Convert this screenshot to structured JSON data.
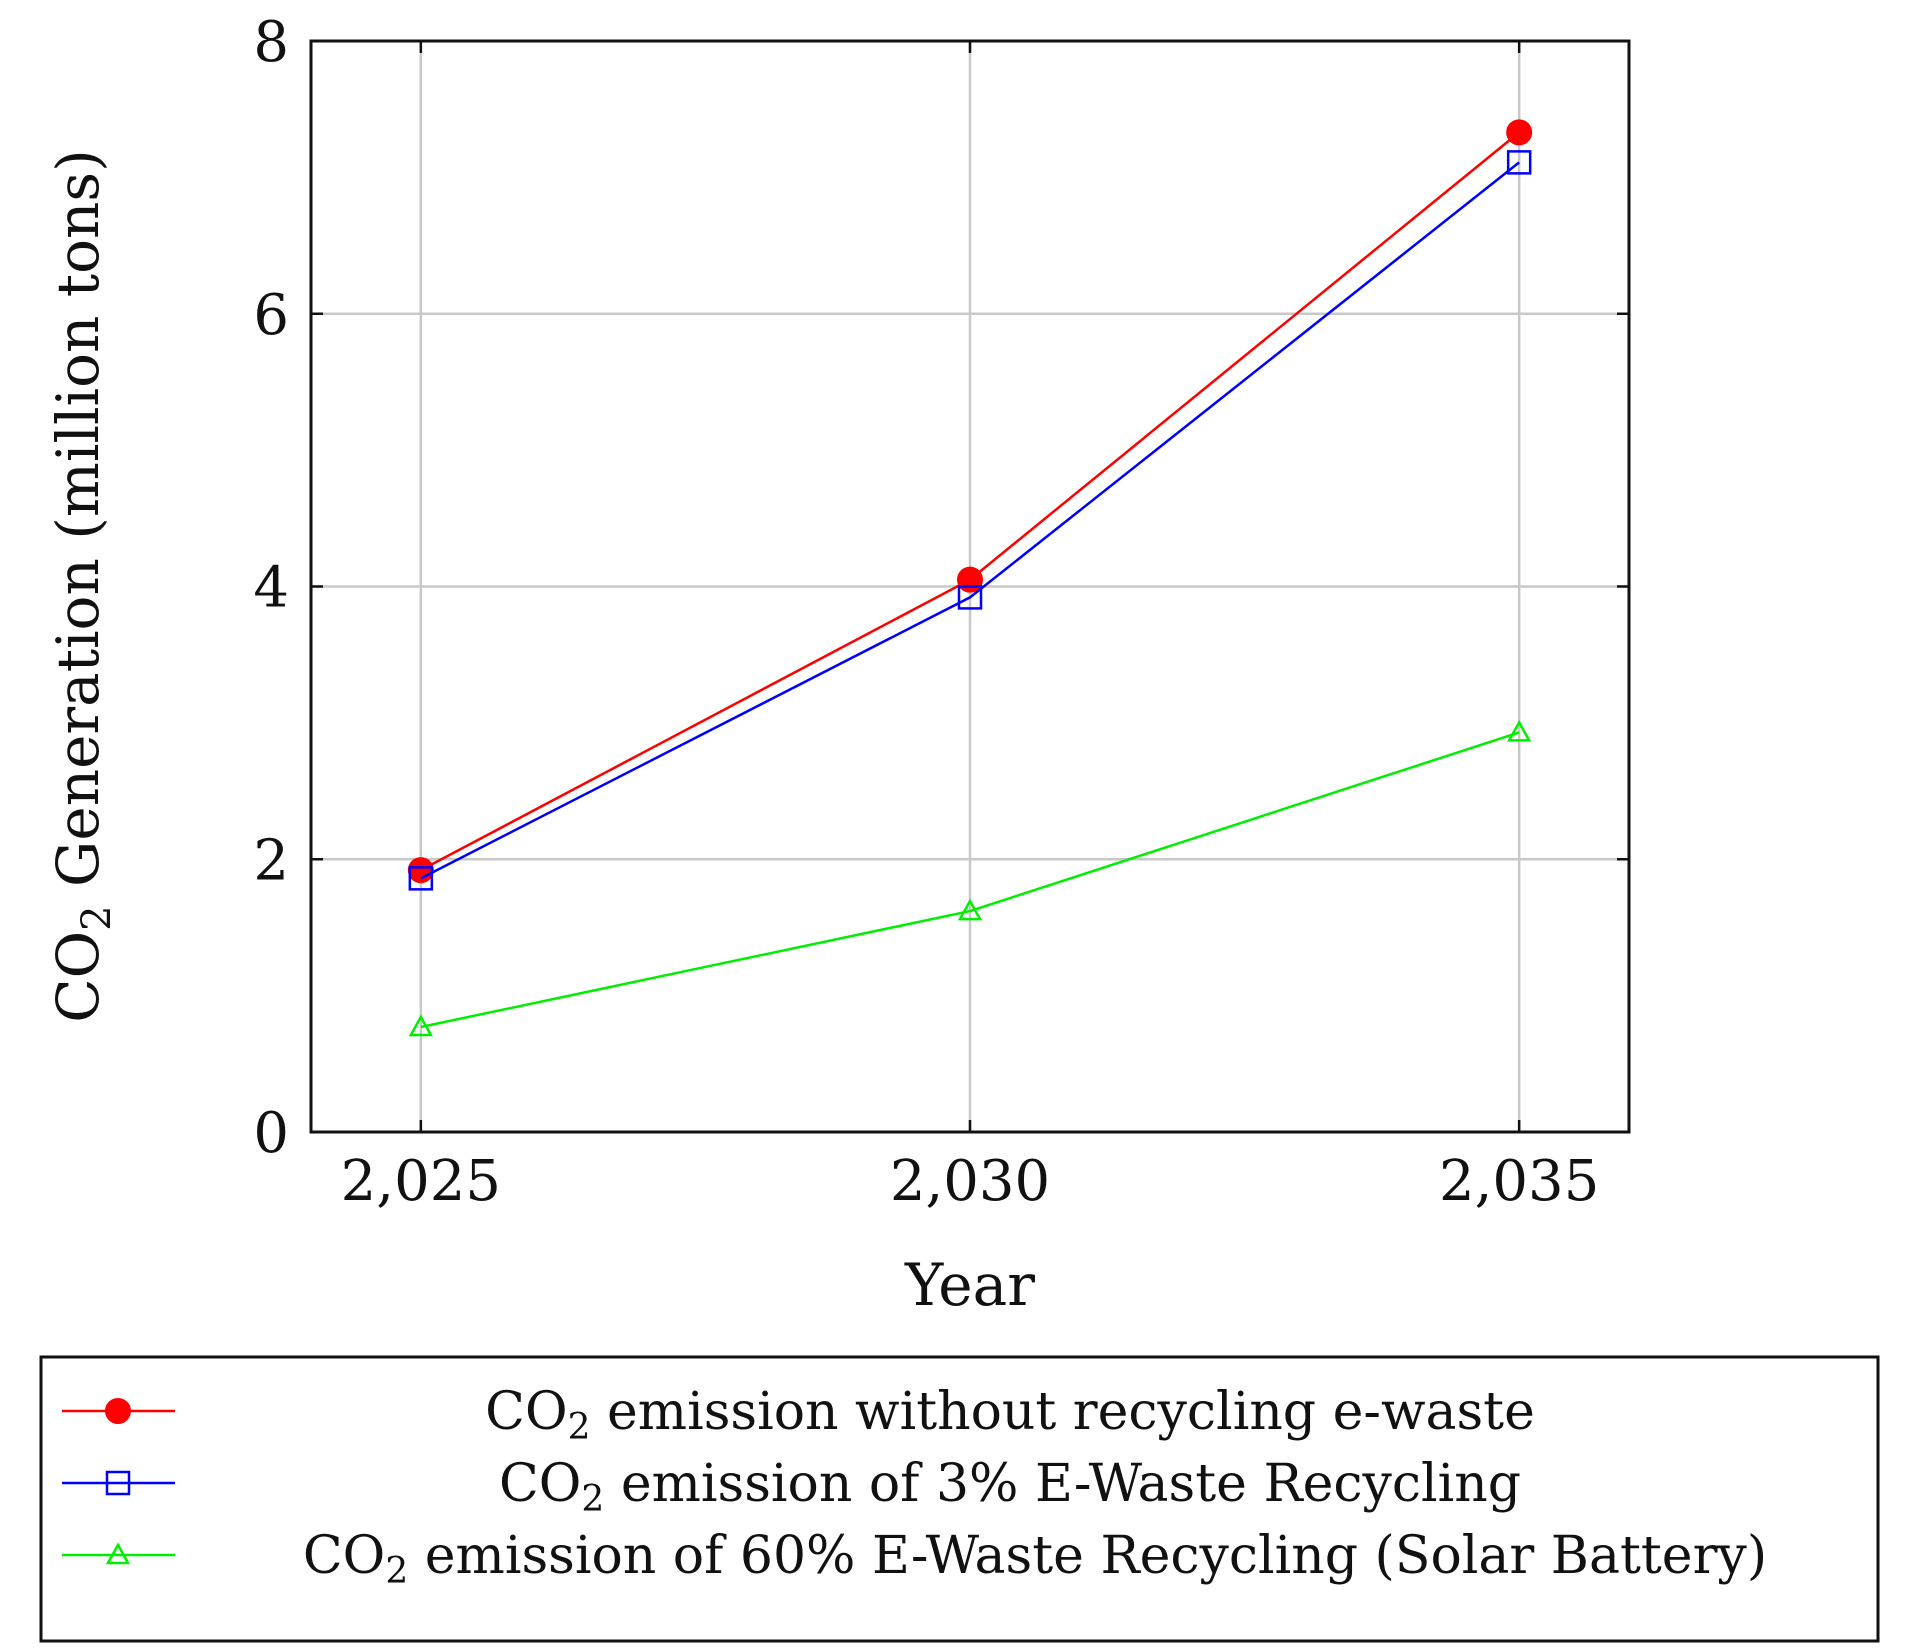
{
  "chart_data": {
    "type": "line",
    "title": "",
    "x": [
      2025,
      2030,
      2035
    ],
    "x_tick_labels": [
      "2,025",
      "2,030",
      "2,035"
    ],
    "xlabel": "Year",
    "ylabel": "CO2 Generation (million tons)",
    "ylabel_parts": {
      "pre": "CO",
      "sub": "2",
      "post": " Generation (million tons)"
    },
    "xlim": [
      2024,
      2036
    ],
    "ylim": [
      0,
      8
    ],
    "y_ticks": [
      0,
      2,
      4,
      6,
      8
    ],
    "y_tick_labels": [
      "0",
      "2",
      "4",
      "6",
      "8"
    ],
    "grid": true,
    "legend_position": "bottom-outside",
    "series": [
      {
        "name": "CO2 emission without recycling e-waste",
        "label_pre": "CO",
        "label_sub": "2",
        "label_post": " emission without recycling e-waste",
        "color": "#ff0000",
        "marker": "filled-circle",
        "values": [
          1.92,
          4.05,
          7.33
        ]
      },
      {
        "name": "CO2 emission of 3% E-Waste Recycling",
        "label_pre": "CO",
        "label_sub": "2",
        "label_post": " emission of 3% E-Waste Recycling",
        "color": "#0000ff",
        "marker": "open-square",
        "values": [
          1.86,
          3.92,
          7.11
        ]
      },
      {
        "name": "CO2 emission of 60% E-Waste Recycling (Solar Battery)",
        "label_pre": "CO",
        "label_sub": "2",
        "label_post": " emission of 60% E-Waste Recycling (Solar Battery)",
        "color": "#00ee00",
        "marker": "open-triangle",
        "values": [
          0.77,
          1.62,
          2.93
        ]
      }
    ]
  }
}
